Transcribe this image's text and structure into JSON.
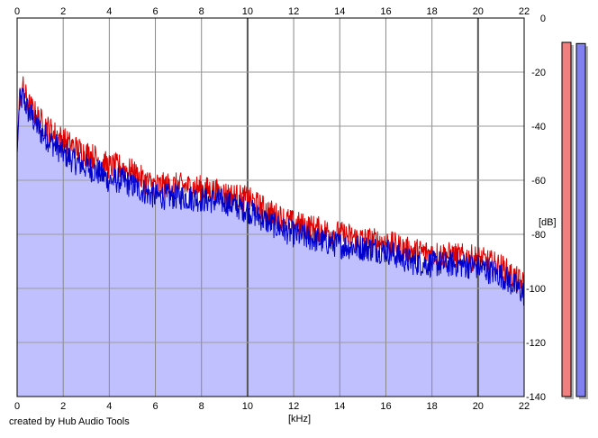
{
  "chart_data": {
    "type": "area",
    "title": "",
    "xlabel": "[kHz]",
    "ylabel": "[dB]",
    "xlim": [
      0,
      22
    ],
    "ylim": [
      -140,
      0
    ],
    "x_ticks": [
      0,
      2,
      4,
      6,
      8,
      10,
      12,
      14,
      16,
      18,
      20,
      22
    ],
    "y_ticks": [
      0,
      -20,
      -40,
      -60,
      -80,
      -100,
      -120,
      -140
    ],
    "y_tick_labels": [
      "0",
      "-20",
      "-40",
      "-60",
      "-80",
      "-100",
      "-120",
      "-140"
    ],
    "grid": true,
    "series": [
      {
        "color": "#dd0000",
        "x": [
          0.0,
          0.1,
          0.25,
          0.5,
          0.75,
          1.0,
          1.5,
          2.0,
          2.5,
          3.0,
          3.5,
          4.0,
          4.5,
          5.0,
          5.5,
          6.0,
          7.0,
          8.0,
          9.0,
          10.0,
          11.0,
          12.0,
          13.0,
          14.0,
          15.0,
          16.0,
          17.0,
          18.0,
          19.0,
          20.0,
          21.0,
          22.0
        ],
        "values": [
          -50,
          -30,
          -26,
          -32,
          -35,
          -38,
          -42,
          -45,
          -48,
          -50,
          -52,
          -55,
          -55,
          -57,
          -60,
          -62,
          -62,
          -63,
          -65,
          -67,
          -72,
          -76,
          -78,
          -80,
          -82,
          -83,
          -86,
          -87,
          -88,
          -89,
          -92,
          -99
        ]
      },
      {
        "color": "#0000cc",
        "x": [
          0.0,
          0.1,
          0.25,
          0.5,
          0.75,
          1.0,
          1.5,
          2.0,
          2.5,
          3.0,
          3.5,
          4.0,
          4.5,
          5.0,
          5.5,
          6.0,
          7.0,
          8.0,
          9.0,
          10.0,
          11.0,
          12.0,
          13.0,
          14.0,
          15.0,
          16.0,
          17.0,
          18.0,
          19.0,
          20.0,
          21.0,
          22.0
        ],
        "values": [
          -50,
          -32,
          -29,
          -35,
          -38,
          -42,
          -46,
          -50,
          -53,
          -55,
          -57,
          -60,
          -60,
          -62,
          -64,
          -66,
          -66,
          -67,
          -68,
          -71,
          -76,
          -80,
          -82,
          -84,
          -85,
          -86,
          -90,
          -91,
          -91,
          -92,
          -95,
          -102
        ]
      }
    ],
    "fill_color": "#c0c0ff",
    "level_meters": [
      {
        "color": "#f08080",
        "level_db": -3
      },
      {
        "color": "#8080f0",
        "level_db": -4
      }
    ]
  },
  "footer": {
    "credit": "created by Hub Audio Tools"
  }
}
